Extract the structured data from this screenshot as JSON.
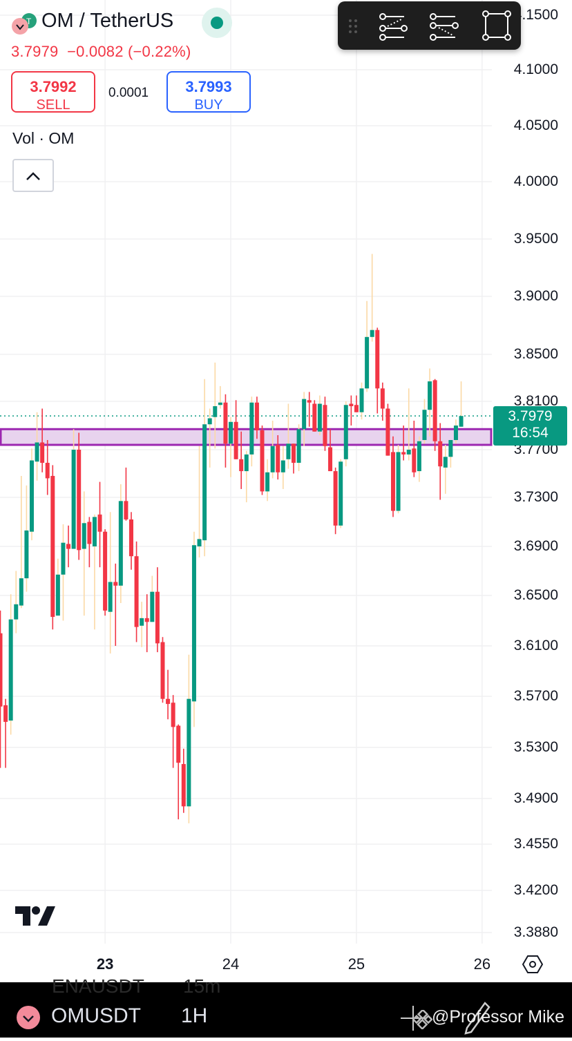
{
  "header": {
    "symbol_title": "OM / TetherUS",
    "last_price": "3.7979",
    "change": "−0.0082",
    "change_pct": "(−0.22%)",
    "market_status": "open",
    "sell_price": "3.7992",
    "sell_label": "SELL",
    "spread": "0.0001",
    "buy_price": "3.7993",
    "buy_label": "BUY",
    "volume_indicator": "Vol · OM",
    "collapse_icon": "chevron-up-icon"
  },
  "toolbar": {
    "icons": [
      "drag-handle-icon",
      "long-position-icon",
      "short-position-icon",
      "rectangle-icon"
    ]
  },
  "price_label": {
    "price": "3.7979",
    "countdown": "16:54"
  },
  "colors": {
    "up": "#089981",
    "down": "#f23645",
    "up_wick": "#fbd9a5",
    "zone_border": "#9c27b0",
    "zone_fill": "#e8d3ee",
    "price_line": "#089981"
  },
  "chart_data": {
    "type": "candlestick",
    "interval": "1H",
    "y_scale": "log",
    "y_ticks": [
      "4.1500",
      "4.1000",
      "4.0500",
      "4.0000",
      "3.9500",
      "3.9000",
      "3.8500",
      "3.8100",
      "3.7700",
      "3.7300",
      "3.6900",
      "3.6500",
      "3.6100",
      "3.5700",
      "3.5300",
      "3.4900",
      "3.4550",
      "3.4200",
      "3.3880"
    ],
    "x_ticks": [
      {
        "label": "23",
        "bold": true
      },
      {
        "label": "24"
      },
      {
        "label": "25"
      },
      {
        "label": "26"
      }
    ],
    "grid": true,
    "current_price": 3.7979,
    "zone": {
      "low": 3.774,
      "high": 3.787
    },
    "candles_ohlc": [
      [
        3.62,
        3.638,
        3.514,
        3.562
      ],
      [
        3.563,
        3.568,
        3.514,
        3.55
      ],
      [
        3.551,
        3.651,
        3.54,
        3.631
      ],
      [
        3.631,
        3.67,
        3.62,
        3.643
      ],
      [
        3.642,
        3.748,
        3.64,
        3.664
      ],
      [
        3.664,
        3.74,
        3.653,
        3.703
      ],
      [
        3.702,
        3.771,
        3.695,
        3.761
      ],
      [
        3.76,
        3.801,
        3.744,
        3.776
      ],
      [
        3.776,
        3.804,
        3.751,
        3.759
      ],
      [
        3.759,
        3.778,
        3.732,
        3.746
      ],
      [
        3.748,
        3.757,
        3.623,
        3.633
      ],
      [
        3.634,
        3.68,
        3.634,
        3.667
      ],
      [
        3.667,
        3.708,
        3.63,
        3.693
      ],
      [
        3.692,
        3.707,
        3.673,
        3.688
      ],
      [
        3.688,
        3.787,
        3.688,
        3.77
      ],
      [
        3.77,
        3.784,
        3.679,
        3.687
      ],
      [
        3.688,
        3.735,
        3.634,
        3.709
      ],
      [
        3.71,
        3.714,
        3.673,
        3.692
      ],
      [
        3.69,
        3.716,
        3.623,
        3.714
      ],
      [
        3.716,
        3.743,
        3.673,
        3.702
      ],
      [
        3.702,
        3.704,
        3.634,
        3.638
      ],
      [
        3.637,
        3.718,
        3.604,
        3.661
      ],
      [
        3.661,
        3.676,
        3.61,
        3.658
      ],
      [
        3.658,
        3.741,
        3.644,
        3.727
      ],
      [
        3.727,
        3.755,
        3.711,
        3.712
      ],
      [
        3.712,
        3.718,
        3.671,
        3.682
      ],
      [
        3.682,
        3.694,
        3.613,
        3.625
      ],
      [
        3.626,
        3.645,
        3.609,
        3.632
      ],
      [
        3.632,
        3.651,
        3.605,
        3.629
      ],
      [
        3.629,
        3.666,
        3.629,
        3.653
      ],
      [
        3.653,
        3.673,
        3.605,
        3.612
      ],
      [
        3.613,
        3.617,
        3.565,
        3.568
      ],
      [
        3.568,
        3.591,
        3.552,
        3.564
      ],
      [
        3.565,
        3.571,
        3.514,
        3.546
      ],
      [
        3.547,
        3.548,
        3.474,
        3.518
      ],
      [
        3.517,
        3.529,
        3.479,
        3.484
      ],
      [
        3.484,
        3.603,
        3.471,
        3.568
      ],
      [
        3.566,
        3.702,
        3.546,
        3.691
      ],
      [
        3.69,
        3.773,
        3.681,
        3.696
      ],
      [
        3.695,
        3.829,
        3.682,
        3.791
      ],
      [
        3.791,
        3.804,
        3.755,
        3.796
      ],
      [
        3.797,
        3.843,
        3.771,
        3.806
      ],
      [
        3.807,
        3.823,
        3.804,
        3.809
      ],
      [
        3.809,
        3.816,
        3.755,
        3.775
      ],
      [
        3.775,
        3.797,
        3.747,
        3.793
      ],
      [
        3.793,
        3.811,
        3.762,
        3.762
      ],
      [
        3.762,
        3.785,
        3.737,
        3.752
      ],
      [
        3.752,
        3.769,
        3.726,
        3.766
      ],
      [
        3.766,
        3.814,
        3.756,
        3.809
      ],
      [
        3.809,
        3.814,
        3.779,
        3.786
      ],
      [
        3.786,
        3.79,
        3.732,
        3.735
      ],
      [
        3.735,
        3.762,
        3.727,
        3.751
      ],
      [
        3.751,
        3.794,
        3.746,
        3.773
      ],
      [
        3.774,
        3.782,
        3.745,
        3.751
      ],
      [
        3.751,
        3.773,
        3.737,
        3.761
      ],
      [
        3.762,
        3.808,
        3.754,
        3.775
      ],
      [
        3.775,
        3.775,
        3.75,
        3.759
      ],
      [
        3.759,
        3.791,
        3.752,
        3.787
      ],
      [
        3.787,
        3.818,
        3.773,
        3.812
      ],
      [
        3.811,
        3.818,
        3.789,
        3.809
      ],
      [
        3.808,
        3.811,
        3.785,
        3.785
      ],
      [
        3.785,
        3.815,
        3.782,
        3.808
      ],
      [
        3.807,
        3.814,
        3.769,
        3.773
      ],
      [
        3.772,
        3.787,
        3.752,
        3.752
      ],
      [
        3.752,
        3.755,
        3.7,
        3.707
      ],
      [
        3.707,
        3.762,
        3.705,
        3.76
      ],
      [
        3.762,
        3.81,
        3.756,
        3.807
      ],
      [
        3.808,
        3.815,
        3.79,
        3.806
      ],
      [
        3.807,
        3.815,
        3.801,
        3.801
      ],
      [
        3.801,
        3.826,
        3.795,
        3.821
      ],
      [
        3.821,
        3.896,
        3.818,
        3.865
      ],
      [
        3.865,
        3.937,
        3.861,
        3.871
      ],
      [
        3.871,
        3.873,
        3.8,
        3.821
      ],
      [
        3.821,
        3.826,
        3.794,
        3.804
      ],
      [
        3.804,
        3.808,
        3.765,
        3.765
      ],
      [
        3.768,
        3.781,
        3.714,
        3.719
      ],
      [
        3.719,
        3.774,
        3.717,
        3.768
      ],
      [
        3.768,
        3.79,
        3.761,
        3.766
      ],
      [
        3.766,
        3.821,
        3.761,
        3.77
      ],
      [
        3.771,
        3.794,
        3.747,
        3.751
      ],
      [
        3.752,
        3.781,
        3.743,
        3.777
      ],
      [
        3.778,
        3.812,
        3.775,
        3.803
      ],
      [
        3.803,
        3.838,
        3.781,
        3.827
      ],
      [
        3.828,
        3.829,
        3.769,
        3.777
      ],
      [
        3.777,
        3.792,
        3.728,
        3.756
      ],
      [
        3.755,
        3.774,
        3.733,
        3.764
      ],
      [
        3.764,
        3.778,
        3.755,
        3.778
      ],
      [
        3.778,
        3.795,
        3.775,
        3.79
      ],
      [
        3.789,
        3.827,
        3.789,
        3.7979
      ]
    ]
  },
  "bottom_bar": {
    "ghost_symbol": "ENAUSDT",
    "ghost_interval": "15m",
    "symbol": "OMUSDT",
    "interval": "1H",
    "watermark": "@Professor Mike",
    "watermark_logo": "binance-logo"
  }
}
